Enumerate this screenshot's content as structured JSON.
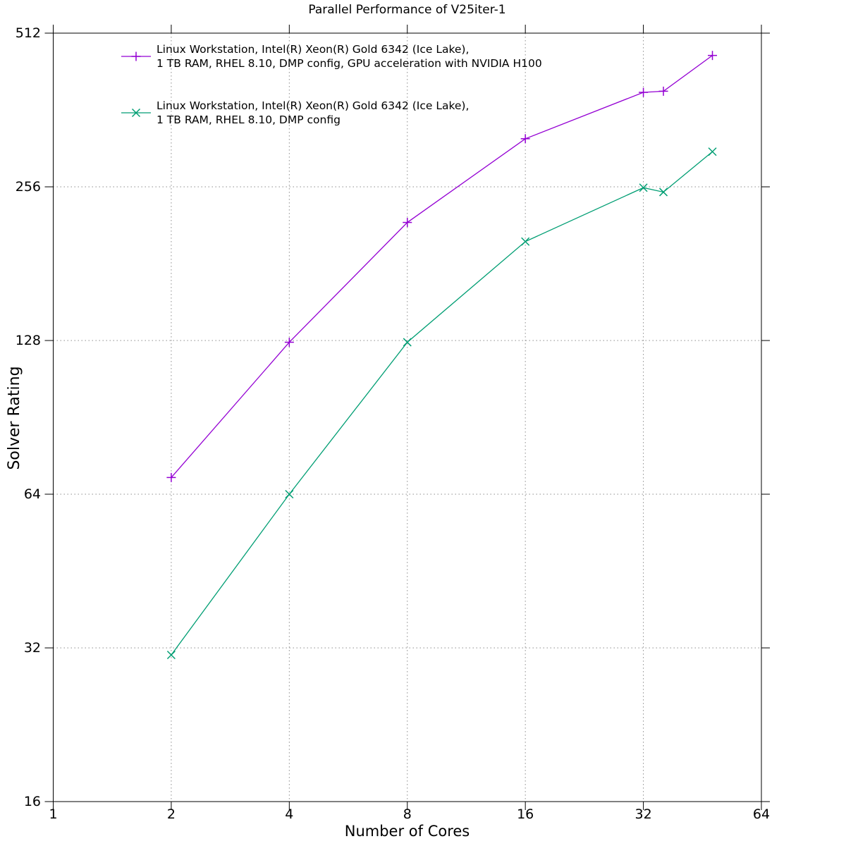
{
  "chart_data": {
    "type": "line",
    "title": "Parallel Performance of V25iter-1",
    "xlabel": "Number of Cores",
    "ylabel": "Solver Rating",
    "x_scale": "log2",
    "y_scale": "log2",
    "xlim": [
      1,
      64
    ],
    "ylim": [
      16,
      512
    ],
    "x_ticks": [
      1,
      2,
      4,
      8,
      16,
      32,
      64
    ],
    "y_ticks": [
      16,
      32,
      64,
      128,
      256,
      512
    ],
    "grid": true,
    "legend_position": "top-left-inside",
    "series": [
      {
        "name": "gpu-accelerated",
        "label_line1": "Linux Workstation, Intel(R) Xeon(R) Gold 6342 (Ice Lake),",
        "label_line2": "1 TB RAM, RHEL 8.10, DMP config, GPU acceleration with NVIDIA H100",
        "color": "#9400d3",
        "marker": "plus",
        "x": [
          2,
          4,
          8,
          16,
          32,
          36,
          48
        ],
        "y": [
          69,
          127,
          218,
          318,
          392,
          394,
          463
        ]
      },
      {
        "name": "cpu-only",
        "label_line1": "Linux Workstation, Intel(R) Xeon(R) Gold 6342 (Ice Lake),",
        "label_line2": "1 TB RAM, RHEL 8.10, DMP config",
        "color": "#009e73",
        "marker": "cross",
        "x": [
          2,
          4,
          8,
          16,
          32,
          36,
          48
        ],
        "y": [
          31,
          64,
          127,
          200,
          255,
          250,
          300
        ]
      }
    ],
    "colors": {
      "background": "#ffffff",
      "border": "#000000",
      "grid": "#8c8c8c",
      "text": "#000000"
    }
  }
}
